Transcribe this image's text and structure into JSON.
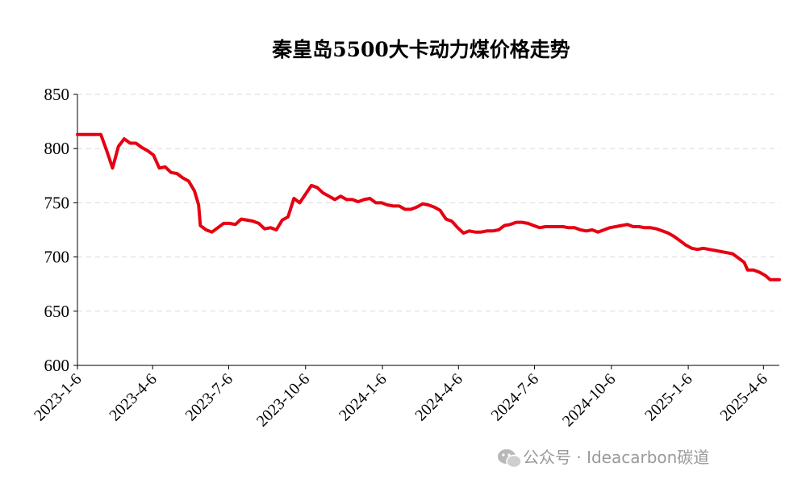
{
  "chart_data": {
    "type": "line",
    "title": "秦皇岛5500大卡动力煤价格走势",
    "xlabel": "",
    "ylabel": "",
    "ylim": [
      600,
      850
    ],
    "yticks": [
      600,
      650,
      700,
      750,
      800,
      850
    ],
    "grid": "horizontal dashed",
    "xtick_labels": [
      "2023-1-6",
      "2023-4-6",
      "2023-7-6",
      "2023-10-6",
      "2024-1-6",
      "2024-4-6",
      "2024-7-6",
      "2024-10-6",
      "2025-1-6",
      "2025-4-6"
    ],
    "x_start": "2023-01-06",
    "x_end": "2025-04-25",
    "series": [
      {
        "color": "#e60012",
        "points": [
          [
            "2023-01-06",
            813
          ],
          [
            "2023-01-20",
            813
          ],
          [
            "2023-02-03",
            813
          ],
          [
            "2023-02-10",
            798
          ],
          [
            "2023-02-17",
            782
          ],
          [
            "2023-02-24",
            802
          ],
          [
            "2023-03-03",
            809
          ],
          [
            "2023-03-10",
            805
          ],
          [
            "2023-03-17",
            805
          ],
          [
            "2023-03-24",
            801
          ],
          [
            "2023-03-31",
            798
          ],
          [
            "2023-04-07",
            794
          ],
          [
            "2023-04-14",
            782
          ],
          [
            "2023-04-21",
            783
          ],
          [
            "2023-04-28",
            778
          ],
          [
            "2023-05-05",
            777
          ],
          [
            "2023-05-12",
            773
          ],
          [
            "2023-05-19",
            770
          ],
          [
            "2023-05-26",
            761
          ],
          [
            "2023-05-31",
            748
          ],
          [
            "2023-06-02",
            729
          ],
          [
            "2023-06-09",
            725
          ],
          [
            "2023-06-16",
            723
          ],
          [
            "2023-06-23",
            727
          ],
          [
            "2023-06-30",
            731
          ],
          [
            "2023-07-07",
            731
          ],
          [
            "2023-07-14",
            730
          ],
          [
            "2023-07-21",
            735
          ],
          [
            "2023-07-28",
            734
          ],
          [
            "2023-08-04",
            733
          ],
          [
            "2023-08-11",
            731
          ],
          [
            "2023-08-18",
            726
          ],
          [
            "2023-08-25",
            727
          ],
          [
            "2023-09-01",
            725
          ],
          [
            "2023-09-08",
            734
          ],
          [
            "2023-09-15",
            737
          ],
          [
            "2023-09-22",
            754
          ],
          [
            "2023-09-29",
            750
          ],
          [
            "2023-10-06",
            758
          ],
          [
            "2023-10-13",
            766
          ],
          [
            "2023-10-20",
            764
          ],
          [
            "2023-10-27",
            759
          ],
          [
            "2023-11-03",
            756
          ],
          [
            "2023-11-10",
            753
          ],
          [
            "2023-11-17",
            756
          ],
          [
            "2023-11-24",
            753
          ],
          [
            "2023-12-01",
            753
          ],
          [
            "2023-12-08",
            751
          ],
          [
            "2023-12-15",
            753
          ],
          [
            "2023-12-22",
            754
          ],
          [
            "2023-12-29",
            750
          ],
          [
            "2024-01-05",
            750
          ],
          [
            "2024-01-12",
            748
          ],
          [
            "2024-01-19",
            747
          ],
          [
            "2024-01-26",
            747
          ],
          [
            "2024-02-02",
            744
          ],
          [
            "2024-02-09",
            744
          ],
          [
            "2024-02-16",
            746
          ],
          [
            "2024-02-23",
            749
          ],
          [
            "2024-03-01",
            748
          ],
          [
            "2024-03-08",
            746
          ],
          [
            "2024-03-15",
            743
          ],
          [
            "2024-03-22",
            735
          ],
          [
            "2024-03-29",
            733
          ],
          [
            "2024-04-05",
            727
          ],
          [
            "2024-04-12",
            722
          ],
          [
            "2024-04-19",
            724
          ],
          [
            "2024-04-26",
            723
          ],
          [
            "2024-05-03",
            723
          ],
          [
            "2024-05-10",
            724
          ],
          [
            "2024-05-17",
            724
          ],
          [
            "2024-05-24",
            725
          ],
          [
            "2024-05-31",
            729
          ],
          [
            "2024-06-07",
            730
          ],
          [
            "2024-06-14",
            732
          ],
          [
            "2024-06-21",
            732
          ],
          [
            "2024-06-28",
            731
          ],
          [
            "2024-07-05",
            729
          ],
          [
            "2024-07-12",
            727
          ],
          [
            "2024-07-19",
            728
          ],
          [
            "2024-07-26",
            728
          ],
          [
            "2024-08-02",
            728
          ],
          [
            "2024-08-09",
            728
          ],
          [
            "2024-08-16",
            727
          ],
          [
            "2024-08-23",
            727
          ],
          [
            "2024-08-30",
            725
          ],
          [
            "2024-09-06",
            724
          ],
          [
            "2024-09-13",
            725
          ],
          [
            "2024-09-20",
            723
          ],
          [
            "2024-09-27",
            725
          ],
          [
            "2024-10-04",
            727
          ],
          [
            "2024-10-11",
            728
          ],
          [
            "2024-10-18",
            729
          ],
          [
            "2024-10-25",
            730
          ],
          [
            "2024-11-01",
            728
          ],
          [
            "2024-11-08",
            728
          ],
          [
            "2024-11-15",
            727
          ],
          [
            "2024-11-22",
            727
          ],
          [
            "2024-11-29",
            726
          ],
          [
            "2024-12-06",
            724
          ],
          [
            "2024-12-13",
            722
          ],
          [
            "2024-12-20",
            719
          ],
          [
            "2024-12-27",
            715
          ],
          [
            "2025-01-03",
            711
          ],
          [
            "2025-01-10",
            708
          ],
          [
            "2025-01-17",
            707
          ],
          [
            "2025-01-24",
            708
          ],
          [
            "2025-01-31",
            707
          ],
          [
            "2025-02-07",
            706
          ],
          [
            "2025-02-14",
            705
          ],
          [
            "2025-02-21",
            704
          ],
          [
            "2025-02-28",
            703
          ],
          [
            "2025-03-07",
            699
          ],
          [
            "2025-03-14",
            695
          ],
          [
            "2025-03-18",
            688
          ],
          [
            "2025-03-25",
            688
          ],
          [
            "2025-04-01",
            686
          ],
          [
            "2025-04-08",
            683
          ],
          [
            "2025-04-14",
            679
          ],
          [
            "2025-04-25",
            679
          ]
        ]
      }
    ]
  },
  "watermark": {
    "icon": "wechat-icon",
    "text": "公众号 · Ideacarbon碳道"
  }
}
